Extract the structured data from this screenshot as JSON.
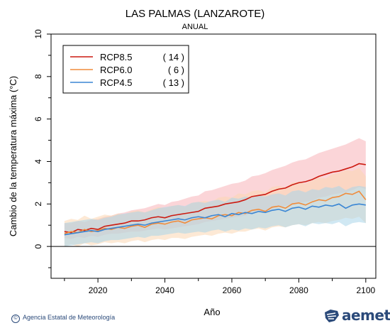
{
  "title": "LAS PALMAS (LANZAROTE)",
  "subtitle": "ANUAL",
  "credit": "Agencia Estatal de Meteorología",
  "logo_text": "aemet",
  "chart_data": {
    "type": "line",
    "xlabel": "Año",
    "ylabel": "Cambio  de la temperatura máxima (°C)",
    "xlim": [
      2006,
      2103
    ],
    "ylim": [
      -1.5,
      10
    ],
    "xticks": [
      2020,
      2040,
      2060,
      2080,
      2100
    ],
    "yticks": [
      0,
      2,
      4,
      6,
      8,
      10
    ],
    "legend_position": "top-left",
    "zero_line": true,
    "series": [
      {
        "name": "RCP8.5",
        "count": "( 14 )",
        "color": "#cc1a10",
        "band_color": "#f7b3b8",
        "x": [
          2010,
          2012,
          2014,
          2016,
          2018,
          2020,
          2022,
          2024,
          2026,
          2028,
          2030,
          2032,
          2034,
          2036,
          2038,
          2040,
          2042,
          2044,
          2046,
          2048,
          2050,
          2052,
          2054,
          2056,
          2058,
          2060,
          2062,
          2064,
          2066,
          2068,
          2070,
          2072,
          2074,
          2076,
          2078,
          2080,
          2082,
          2084,
          2086,
          2088,
          2090,
          2092,
          2094,
          2096,
          2098,
          2100
        ],
        "values": [
          0.7,
          0.65,
          0.8,
          0.75,
          0.85,
          0.8,
          0.95,
          1.0,
          1.05,
          1.1,
          1.2,
          1.2,
          1.25,
          1.35,
          1.4,
          1.35,
          1.45,
          1.5,
          1.55,
          1.6,
          1.65,
          1.8,
          1.85,
          1.9,
          2.0,
          2.05,
          2.1,
          2.2,
          2.35,
          2.4,
          2.45,
          2.6,
          2.7,
          2.75,
          2.9,
          3.0,
          3.05,
          3.15,
          3.3,
          3.4,
          3.5,
          3.55,
          3.65,
          3.75,
          3.9,
          3.85
        ],
        "lower": [
          0.4,
          0.35,
          0.45,
          0.4,
          0.5,
          0.45,
          0.55,
          0.6,
          0.6,
          0.65,
          0.7,
          0.7,
          0.75,
          0.8,
          0.85,
          0.8,
          0.85,
          0.9,
          0.95,
          1.0,
          1.05,
          1.15,
          1.2,
          1.25,
          1.3,
          1.35,
          1.4,
          1.45,
          1.55,
          1.6,
          1.65,
          1.75,
          1.85,
          1.9,
          2.0,
          2.05,
          2.1,
          2.15,
          2.3,
          2.35,
          2.45,
          2.5,
          2.55,
          2.65,
          2.8,
          2.7
        ],
        "upper": [
          1.1,
          1.1,
          1.2,
          1.15,
          1.25,
          1.3,
          1.4,
          1.45,
          1.55,
          1.6,
          1.7,
          1.75,
          1.8,
          1.9,
          2.0,
          1.95,
          2.1,
          2.15,
          2.25,
          2.35,
          2.4,
          2.6,
          2.65,
          2.75,
          2.85,
          2.95,
          3.0,
          3.1,
          3.3,
          3.35,
          3.45,
          3.6,
          3.7,
          3.8,
          3.95,
          4.05,
          4.1,
          4.25,
          4.4,
          4.5,
          4.6,
          4.7,
          4.8,
          4.95,
          5.1,
          4.95
        ]
      },
      {
        "name": "RCP6.0",
        "count": "(   6 )",
        "color": "#f08c3c",
        "band_color": "#fcd7b3",
        "x": [
          2010,
          2012,
          2014,
          2016,
          2018,
          2020,
          2022,
          2024,
          2026,
          2028,
          2030,
          2032,
          2034,
          2036,
          2038,
          2040,
          2042,
          2044,
          2046,
          2048,
          2050,
          2052,
          2054,
          2056,
          2058,
          2060,
          2062,
          2064,
          2066,
          2068,
          2070,
          2072,
          2074,
          2076,
          2078,
          2080,
          2082,
          2084,
          2086,
          2088,
          2090,
          2092,
          2094,
          2096,
          2098,
          2100
        ],
        "values": [
          0.6,
          0.7,
          0.65,
          0.8,
          0.7,
          0.75,
          0.85,
          0.8,
          0.9,
          0.85,
          0.95,
          1.0,
          0.9,
          1.05,
          1.1,
          1.05,
          1.15,
          1.2,
          1.1,
          1.25,
          1.3,
          1.35,
          1.3,
          1.45,
          1.5,
          1.45,
          1.6,
          1.55,
          1.7,
          1.75,
          1.65,
          1.85,
          1.9,
          1.8,
          2.0,
          2.05,
          1.95,
          2.1,
          2.2,
          2.15,
          2.3,
          2.35,
          2.5,
          2.45,
          2.6,
          2.2
        ],
        "lower": [
          0.0,
          0.1,
          0.0,
          0.15,
          0.05,
          0.1,
          0.2,
          0.15,
          0.2,
          0.15,
          0.25,
          0.3,
          0.2,
          0.3,
          0.35,
          0.3,
          0.4,
          0.4,
          0.35,
          0.45,
          0.5,
          0.55,
          0.5,
          0.6,
          0.65,
          0.6,
          0.7,
          0.7,
          0.8,
          0.85,
          0.75,
          0.9,
          0.95,
          0.9,
          1.0,
          1.05,
          1.0,
          1.1,
          1.15,
          1.1,
          1.2,
          1.25,
          1.35,
          1.3,
          1.4,
          1.1
        ],
        "upper": [
          1.2,
          1.3,
          1.25,
          1.45,
          1.3,
          1.4,
          1.5,
          1.45,
          1.55,
          1.5,
          1.65,
          1.7,
          1.6,
          1.75,
          1.85,
          1.8,
          1.9,
          1.95,
          1.85,
          2.05,
          2.1,
          2.15,
          2.1,
          2.3,
          2.35,
          2.3,
          2.5,
          2.45,
          2.6,
          2.65,
          2.55,
          2.8,
          2.85,
          2.75,
          3.0,
          3.05,
          2.95,
          3.1,
          3.25,
          3.2,
          3.4,
          3.45,
          3.6,
          3.55,
          3.7,
          3.3
        ]
      },
      {
        "name": "RCP4.5",
        "count": "( 13 )",
        "color": "#3a86d4",
        "band_color": "#a9d6ea",
        "x": [
          2010,
          2012,
          2014,
          2016,
          2018,
          2020,
          2022,
          2024,
          2026,
          2028,
          2030,
          2032,
          2034,
          2036,
          2038,
          2040,
          2042,
          2044,
          2046,
          2048,
          2050,
          2052,
          2054,
          2056,
          2058,
          2060,
          2062,
          2064,
          2066,
          2068,
          2070,
          2072,
          2074,
          2076,
          2078,
          2080,
          2082,
          2084,
          2086,
          2088,
          2090,
          2092,
          2094,
          2096,
          2098,
          2100
        ],
        "values": [
          0.55,
          0.6,
          0.65,
          0.7,
          0.75,
          0.7,
          0.8,
          0.85,
          0.9,
          0.95,
          1.0,
          1.05,
          1.0,
          1.1,
          1.15,
          1.2,
          1.25,
          1.3,
          1.25,
          1.35,
          1.4,
          1.35,
          1.45,
          1.5,
          1.4,
          1.55,
          1.5,
          1.6,
          1.55,
          1.65,
          1.6,
          1.7,
          1.75,
          1.65,
          1.8,
          1.85,
          1.75,
          1.9,
          1.85,
          1.95,
          1.9,
          2.0,
          1.8,
          1.95,
          2.0,
          1.95
        ],
        "lower": [
          0.0,
          0.05,
          0.1,
          0.15,
          0.2,
          0.15,
          0.25,
          0.3,
          0.3,
          0.35,
          0.4,
          0.45,
          0.4,
          0.5,
          0.5,
          0.55,
          0.6,
          0.65,
          0.6,
          0.65,
          0.7,
          0.65,
          0.75,
          0.8,
          0.7,
          0.8,
          0.75,
          0.85,
          0.8,
          0.9,
          0.85,
          0.95,
          1.0,
          0.9,
          1.0,
          1.05,
          0.95,
          1.1,
          1.05,
          1.1,
          1.05,
          1.15,
          0.95,
          1.1,
          1.15,
          1.1
        ],
        "upper": [
          1.1,
          1.15,
          1.2,
          1.25,
          1.3,
          1.25,
          1.35,
          1.4,
          1.5,
          1.55,
          1.6,
          1.65,
          1.6,
          1.7,
          1.8,
          1.85,
          1.9,
          1.95,
          1.9,
          2.05,
          2.1,
          2.05,
          2.15,
          2.2,
          2.1,
          2.3,
          2.25,
          2.35,
          2.3,
          2.4,
          2.35,
          2.45,
          2.5,
          2.4,
          2.6,
          2.65,
          2.55,
          2.7,
          2.65,
          2.8,
          2.75,
          2.85,
          2.65,
          2.8,
          2.85,
          2.8
        ]
      }
    ]
  }
}
